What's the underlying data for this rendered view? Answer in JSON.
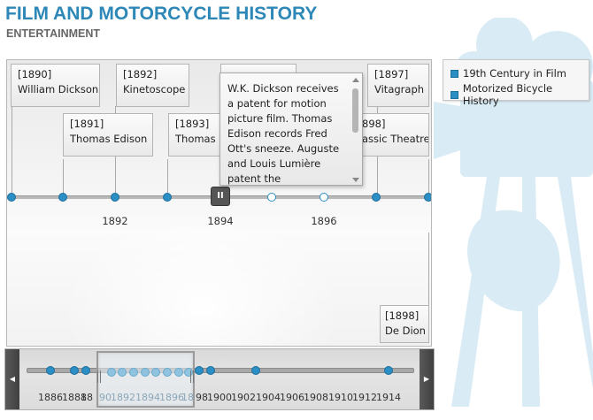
{
  "header": {
    "title": "FILM AND MOTORCYCLE HISTORY",
    "subtitle": "ENTERTAINMENT"
  },
  "legend": {
    "items": [
      {
        "label": "19th Century in Film",
        "color": "#2b8ec4"
      },
      {
        "label": "Motorized Bicycle History",
        "color": "#2b8ec4"
      }
    ]
  },
  "events": [
    {
      "year": "[1890]",
      "title": "William Dickson"
    },
    {
      "year": "[1891]",
      "title": "Thomas Edison"
    },
    {
      "year": "[1892]",
      "title": "Kinetoscope"
    },
    {
      "year": "[1893]",
      "title": "Thomas E"
    },
    {
      "year": "[1897]",
      "title": "Vitagraph"
    },
    {
      "year": "898]",
      "title": "assic Theatre"
    },
    {
      "year": "[1898]",
      "title": "De Dion"
    }
  ],
  "tooltip": {
    "text": "W.K. Dickson receives a patent for motion picture film. Thomas Edison records Fred Ott's sneeze. Auguste and Louis Lumière patent the"
  },
  "main_axis": {
    "tick_labels": [
      "1892",
      "1894",
      "1896"
    ],
    "play_button": "II"
  },
  "navigator": {
    "left_arrow": "◀",
    "right_arrow": "▶",
    "labels": [
      "1886",
      "1888",
      "18",
      "90",
      "1892",
      "1894",
      "1896",
      "18",
      "98",
      "1900",
      "1902",
      "1904",
      "1906",
      "1908",
      "1910",
      "1912",
      "1914"
    ]
  }
}
